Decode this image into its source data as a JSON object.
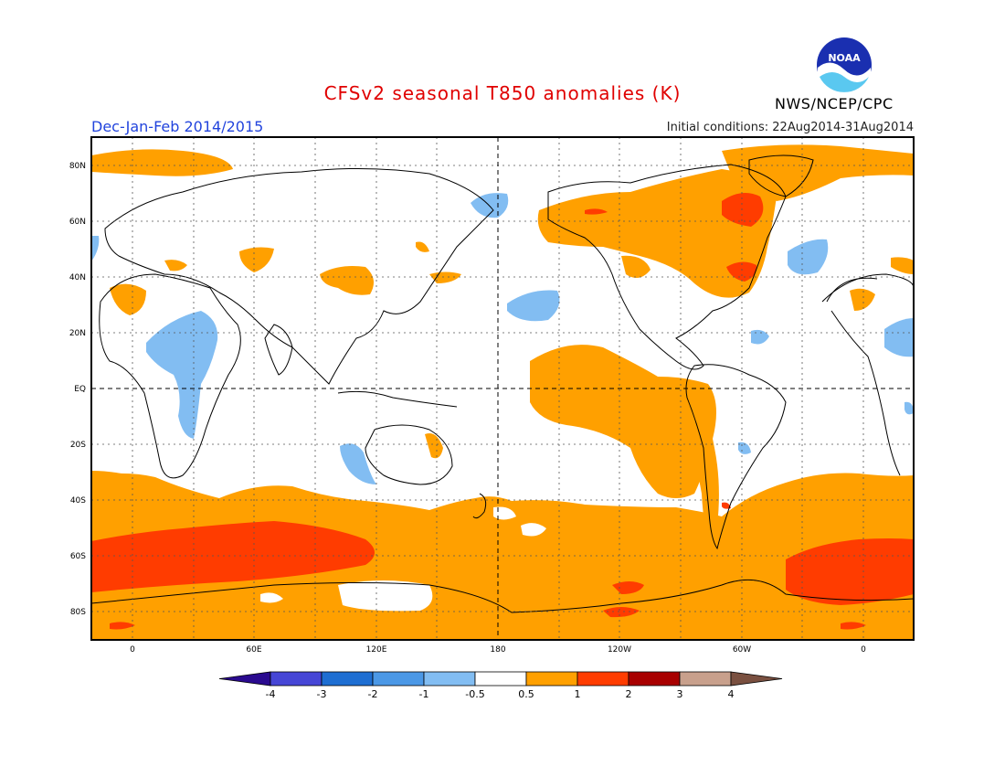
{
  "header": {
    "title": "CFSv2 seasonal T850 anomalies (K)",
    "season": "Dec-Jan-Feb 2014/2015",
    "initial_conditions": "Initial conditions: 22Aug2014-31Aug2014",
    "agency": "NWS/NCEP/CPC",
    "logo_text": "NOAA"
  },
  "axes": {
    "lat_labels": [
      "80N",
      "60N",
      "40N",
      "20N",
      "EQ",
      "20S",
      "40S",
      "60S",
      "80S"
    ],
    "lon_labels": [
      "0",
      "60E",
      "120E",
      "180",
      "120W",
      "60W",
      "0"
    ]
  },
  "colorbar": {
    "labels": [
      "-4",
      "-3",
      "-2",
      "-1",
      "-0.5",
      "0.5",
      "1",
      "2",
      "3",
      "4"
    ],
    "colors": [
      "#2a0a8f",
      "#4646d6",
      "#1e6ed2",
      "#4b98e6",
      "#82bdf2",
      "#ffffff",
      "#ffa000",
      "#ff3c00",
      "#a80000",
      "#c8a08c",
      "#7a5040"
    ]
  },
  "legend_colors": {
    "anom_0_5_to_1": "#ffa000",
    "anom_1_to_2": "#ff3c00",
    "anom_neg_1_to_neg_0_5": "#82bdf2",
    "land_outline": "#000000"
  }
}
